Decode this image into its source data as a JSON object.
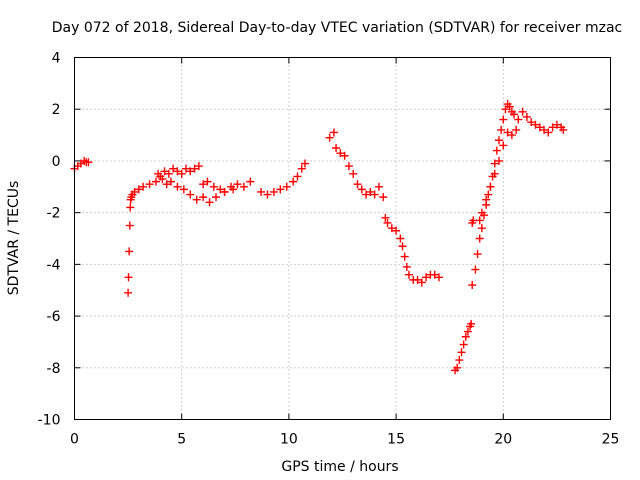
{
  "chart_data": {
    "type": "scatter",
    "title": "Day 072 of 2018, Sidereal Day-to-day VTEC variation (SDTVAR) for receiver mzac",
    "xlabel": "GPS time / hours",
    "ylabel": "SDTVAR / TECUs",
    "xlim": [
      0,
      25
    ],
    "ylim": [
      -10,
      4
    ],
    "xticks": [
      0,
      5,
      10,
      15,
      20,
      25
    ],
    "yticks": [
      -10,
      -8,
      -6,
      -4,
      -2,
      0,
      2,
      4
    ],
    "xtick_labels": [
      "0",
      "5",
      "10",
      "15",
      "20",
      "25"
    ],
    "ytick_labels": [
      "-10",
      "-8",
      "-6",
      "-4",
      "-2",
      "0",
      "2",
      "4"
    ],
    "grid": true,
    "marker": "+",
    "series": [
      {
        "name": "mzac",
        "color": "#ff0000",
        "x": [
          0.0,
          0.15,
          0.3,
          0.45,
          0.55,
          0.65,
          2.5,
          2.52,
          2.55,
          2.58,
          2.6,
          2.62,
          2.65,
          2.7,
          2.8,
          3.0,
          3.2,
          3.5,
          3.8,
          4.0,
          4.2,
          4.4,
          4.6,
          4.8,
          5.0,
          5.2,
          5.4,
          5.6,
          5.8,
          6.0,
          6.2,
          6.5,
          6.8,
          7.0,
          7.3,
          7.6,
          7.9,
          8.2,
          3.9,
          4.1,
          4.3,
          4.5,
          4.8,
          5.1,
          5.4,
          5.7,
          6.0,
          6.3,
          6.6,
          7.0,
          7.4,
          8.7,
          9.0,
          9.3,
          9.6,
          9.9,
          10.2,
          10.4,
          10.6,
          10.75,
          11.9,
          12.1,
          12.2,
          12.4,
          12.6,
          12.8,
          13.0,
          13.2,
          13.4,
          13.6,
          13.8,
          14.0,
          14.2,
          14.4,
          14.5,
          14.6,
          14.8,
          15.0,
          15.2,
          15.3,
          15.4,
          15.5,
          15.6,
          15.8,
          16.0,
          16.2,
          16.4,
          16.6,
          16.8,
          17.0,
          17.75,
          17.85,
          17.95,
          18.05,
          18.15,
          18.25,
          18.35,
          18.45,
          18.5,
          18.55,
          18.6,
          18.55,
          18.7,
          18.8,
          18.9,
          19.0,
          19.1,
          19.2,
          19.3,
          19.4,
          19.5,
          19.6,
          19.7,
          19.8,
          19.9,
          20.0,
          20.1,
          20.2,
          20.3,
          20.4,
          18.9,
          19.0,
          19.2,
          19.4,
          19.6,
          19.8,
          20.0,
          20.2,
          20.4,
          20.6,
          20.5,
          20.7,
          20.9,
          21.1,
          21.3,
          21.5,
          21.7,
          21.9,
          22.1,
          22.3,
          22.5,
          22.7,
          22.8
        ],
        "y": [
          -0.3,
          -0.2,
          -0.1,
          0.0,
          -0.05,
          -0.05,
          -5.1,
          -4.5,
          -3.5,
          -2.5,
          -1.8,
          -1.5,
          -1.4,
          -1.3,
          -1.2,
          -1.1,
          -1.0,
          -0.9,
          -0.8,
          -0.6,
          -0.4,
          -0.5,
          -0.3,
          -0.4,
          -0.5,
          -0.3,
          -0.4,
          -0.3,
          -0.2,
          -0.9,
          -0.8,
          -1.0,
          -1.1,
          -1.2,
          -1.0,
          -0.9,
          -1.0,
          -0.8,
          -0.5,
          -0.7,
          -0.9,
          -0.8,
          -1.0,
          -1.1,
          -1.3,
          -1.5,
          -1.4,
          -1.6,
          -1.4,
          -1.2,
          -1.1,
          -1.2,
          -1.3,
          -1.2,
          -1.1,
          -1.0,
          -0.8,
          -0.6,
          -0.3,
          -0.1,
          0.9,
          1.1,
          0.5,
          0.3,
          0.2,
          -0.2,
          -0.5,
          -0.9,
          -1.1,
          -1.3,
          -1.2,
          -1.3,
          -1.0,
          -1.4,
          -2.2,
          -2.4,
          -2.6,
          -2.7,
          -3.0,
          -3.3,
          -3.7,
          -4.1,
          -4.4,
          -4.6,
          -4.6,
          -4.7,
          -4.5,
          -4.4,
          -4.4,
          -4.5,
          -8.1,
          -8.0,
          -7.7,
          -7.4,
          -7.1,
          -6.8,
          -6.6,
          -6.4,
          -6.3,
          -2.4,
          -2.3,
          -4.8,
          -4.2,
          -3.6,
          -3.0,
          -2.6,
          -2.1,
          -1.7,
          -1.3,
          -1.0,
          -0.6,
          -0.1,
          0.4,
          0.8,
          1.2,
          1.6,
          2.0,
          2.2,
          2.1,
          1.9,
          -2.3,
          -2.0,
          -1.5,
          -1.0,
          -0.5,
          0.0,
          0.6,
          1.1,
          1.0,
          1.2,
          1.8,
          1.6,
          1.9,
          1.7,
          1.5,
          1.4,
          1.3,
          1.2,
          1.1,
          1.3,
          1.4,
          1.3,
          1.2
        ]
      }
    ]
  }
}
